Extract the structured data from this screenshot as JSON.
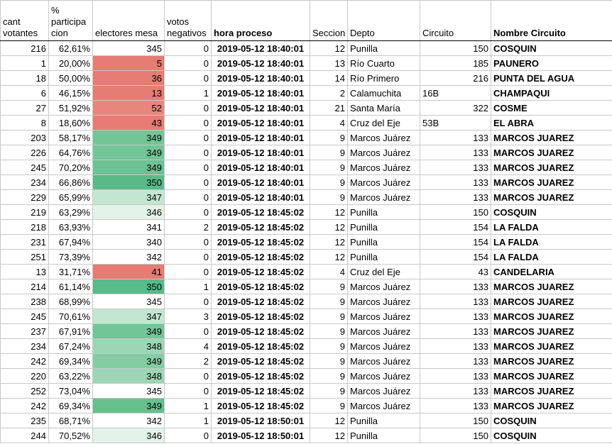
{
  "headers": {
    "cant_votantes": "cant\nvotantes",
    "participacion": "%\nparticipa\ncion",
    "electores_mesa": "electores mesa",
    "votos_negativos": "votos\nnegativos",
    "hora_proceso": "hora proceso",
    "seccion": "Seccion",
    "depto": "Depto",
    "circuito": "Circuito",
    "nombre_circuito": "Nombre Circuito"
  },
  "rows": [
    {
      "cant": "216",
      "pct": "62,61%",
      "electores": "345",
      "neg": "0",
      "hora": "2019-05-12 18:40:01",
      "seccion": "12",
      "depto": "Punilla",
      "circuito": "150",
      "nombre": "COSQUIN",
      "color": "#ffffff"
    },
    {
      "cant": "1",
      "pct": "20,00%",
      "electores": "5",
      "neg": "0",
      "hora": "2019-05-12 18:40:01",
      "seccion": "13",
      "depto": "Río Cuarto",
      "circuito": "185",
      "nombre": "PAUNERO",
      "color": "#e67c73"
    },
    {
      "cant": "18",
      "pct": "50,00%",
      "electores": "36",
      "neg": "0",
      "hora": "2019-05-12 18:40:01",
      "seccion": "14",
      "depto": "Río Primero",
      "circuito": "216",
      "nombre": "PUNTA DEL AGUA",
      "color": "#e67c73"
    },
    {
      "cant": "6",
      "pct": "46,15%",
      "electores": "13",
      "neg": "1",
      "hora": "2019-05-12 18:40:01",
      "seccion": "2",
      "depto": "Calamuchita",
      "circuito": "16B",
      "nombre": "CHAMPAQUI",
      "color": "#e67c73"
    },
    {
      "cant": "27",
      "pct": "51,92%",
      "electores": "52",
      "neg": "0",
      "hora": "2019-05-12 18:40:01",
      "seccion": "21",
      "depto": "Santa María",
      "circuito": "322",
      "nombre": "COSME",
      "color": "#e8857d"
    },
    {
      "cant": "8",
      "pct": "18,60%",
      "electores": "43",
      "neg": "0",
      "hora": "2019-05-12 18:40:01",
      "seccion": "4",
      "depto": "Cruz del Eje",
      "circuito": "53B",
      "nombre": "EL ABRA",
      "color": "#e67c73"
    },
    {
      "cant": "203",
      "pct": "58,17%",
      "electores": "349",
      "neg": "0",
      "hora": "2019-05-12 18:40:01",
      "seccion": "9",
      "depto": "Marcos Juárez",
      "circuito": "133",
      "nombre": "MARCOS JUAREZ",
      "color": "#72c596"
    },
    {
      "cant": "226",
      "pct": "64,76%",
      "electores": "349",
      "neg": "0",
      "hora": "2019-05-12 18:40:01",
      "seccion": "9",
      "depto": "Marcos Juárez",
      "circuito": "133",
      "nombre": "MARCOS JUAREZ",
      "color": "#72c596"
    },
    {
      "cant": "245",
      "pct": "70,20%",
      "electores": "349",
      "neg": "0",
      "hora": "2019-05-12 18:40:01",
      "seccion": "9",
      "depto": "Marcos Juárez",
      "circuito": "133",
      "nombre": "MARCOS JUAREZ",
      "color": "#6cc292"
    },
    {
      "cant": "234",
      "pct": "66,86%",
      "electores": "350",
      "neg": "0",
      "hora": "2019-05-12 18:40:01",
      "seccion": "9",
      "depto": "Marcos Juárez",
      "circuito": "133",
      "nombre": "MARCOS JUAREZ",
      "color": "#5bb987"
    },
    {
      "cant": "229",
      "pct": "65,99%",
      "electores": "347",
      "neg": "0",
      "hora": "2019-05-12 18:40:01",
      "seccion": "9",
      "depto": "Marcos Juárez",
      "circuito": "133",
      "nombre": "MARCOS JUAREZ",
      "color": "#c3e6d1"
    },
    {
      "cant": "219",
      "pct": "63,29%",
      "electores": "346",
      "neg": "0",
      "hora": "2019-05-12 18:45:02",
      "seccion": "12",
      "depto": "Punilla",
      "circuito": "150",
      "nombre": "COSQUIN",
      "color": "#e3f3e9"
    },
    {
      "cant": "218",
      "pct": "63,93%",
      "electores": "341",
      "neg": "2",
      "hora": "2019-05-12 18:45:02",
      "seccion": "12",
      "depto": "Punilla",
      "circuito": "154",
      "nombre": "LA FALDA",
      "color": "#ffffff"
    },
    {
      "cant": "231",
      "pct": "67,94%",
      "electores": "340",
      "neg": "0",
      "hora": "2019-05-12 18:45:02",
      "seccion": "12",
      "depto": "Punilla",
      "circuito": "154",
      "nombre": "LA FALDA",
      "color": "#ffffff"
    },
    {
      "cant": "251",
      "pct": "73,39%",
      "electores": "342",
      "neg": "0",
      "hora": "2019-05-12 18:45:02",
      "seccion": "12",
      "depto": "Punilla",
      "circuito": "154",
      "nombre": "LA FALDA",
      "color": "#ffffff"
    },
    {
      "cant": "13",
      "pct": "31,71%",
      "electores": "41",
      "neg": "0",
      "hora": "2019-05-12 18:45:02",
      "seccion": "4",
      "depto": "Cruz del Eje",
      "circuito": "43",
      "nombre": "CANDELARIA",
      "color": "#e67c73"
    },
    {
      "cant": "214",
      "pct": "61,14%",
      "electores": "350",
      "neg": "1",
      "hora": "2019-05-12 18:45:02",
      "seccion": "9",
      "depto": "Marcos Juárez",
      "circuito": "133",
      "nombre": "MARCOS JUAREZ",
      "color": "#57bb8a"
    },
    {
      "cant": "238",
      "pct": "68,99%",
      "electores": "345",
      "neg": "0",
      "hora": "2019-05-12 18:45:02",
      "seccion": "9",
      "depto": "Marcos Juárez",
      "circuito": "133",
      "nombre": "MARCOS JUAREZ",
      "color": "#ffffff"
    },
    {
      "cant": "245",
      "pct": "70,61%",
      "electores": "347",
      "neg": "3",
      "hora": "2019-05-12 18:45:02",
      "seccion": "9",
      "depto": "Marcos Juárez",
      "circuito": "133",
      "nombre": "MARCOS JUAREZ",
      "color": "#c3e6d1"
    },
    {
      "cant": "237",
      "pct": "67,91%",
      "electores": "349",
      "neg": "0",
      "hora": "2019-05-12 18:45:02",
      "seccion": "9",
      "depto": "Marcos Juárez",
      "circuito": "133",
      "nombre": "MARCOS JUAREZ",
      "color": "#72c596"
    },
    {
      "cant": "234",
      "pct": "67,24%",
      "electores": "348",
      "neg": "4",
      "hora": "2019-05-12 18:45:02",
      "seccion": "9",
      "depto": "Marcos Juárez",
      "circuito": "133",
      "nombre": "MARCOS JUAREZ",
      "color": "#9dd6b4"
    },
    {
      "cant": "242",
      "pct": "69,34%",
      "electores": "349",
      "neg": "2",
      "hora": "2019-05-12 18:45:02",
      "seccion": "9",
      "depto": "Marcos Juárez",
      "circuito": "133",
      "nombre": "MARCOS JUAREZ",
      "color": "#84cda3"
    },
    {
      "cant": "220",
      "pct": "63,22%",
      "electores": "348",
      "neg": "0",
      "hora": "2019-05-12 18:45:02",
      "seccion": "9",
      "depto": "Marcos Juárez",
      "circuito": "133",
      "nombre": "MARCOS JUAREZ",
      "color": "#9dd6b4"
    },
    {
      "cant": "252",
      "pct": "73,04%",
      "electores": "345",
      "neg": "0",
      "hora": "2019-05-12 18:45:02",
      "seccion": "9",
      "depto": "Marcos Juárez",
      "circuito": "133",
      "nombre": "MARCOS JUAREZ",
      "color": "#ffffff"
    },
    {
      "cant": "242",
      "pct": "69,34%",
      "electores": "349",
      "neg": "1",
      "hora": "2019-05-12 18:45:02",
      "seccion": "9",
      "depto": "Marcos Juárez",
      "circuito": "133",
      "nombre": "MARCOS JUAREZ",
      "color": "#66c08e"
    },
    {
      "cant": "235",
      "pct": "68,71%",
      "electores": "342",
      "neg": "1",
      "hora": "2019-05-12 18:50:01",
      "seccion": "12",
      "depto": "Punilla",
      "circuito": "150",
      "nombre": "COSQUIN",
      "color": "#ffffff"
    },
    {
      "cant": "244",
      "pct": "70,52%",
      "electores": "346",
      "neg": "0",
      "hora": "2019-05-12 18:50:01",
      "seccion": "12",
      "depto": "Punilla",
      "circuito": "150",
      "nombre": "COSQUIN",
      "color": "#e3f3e9"
    }
  ]
}
